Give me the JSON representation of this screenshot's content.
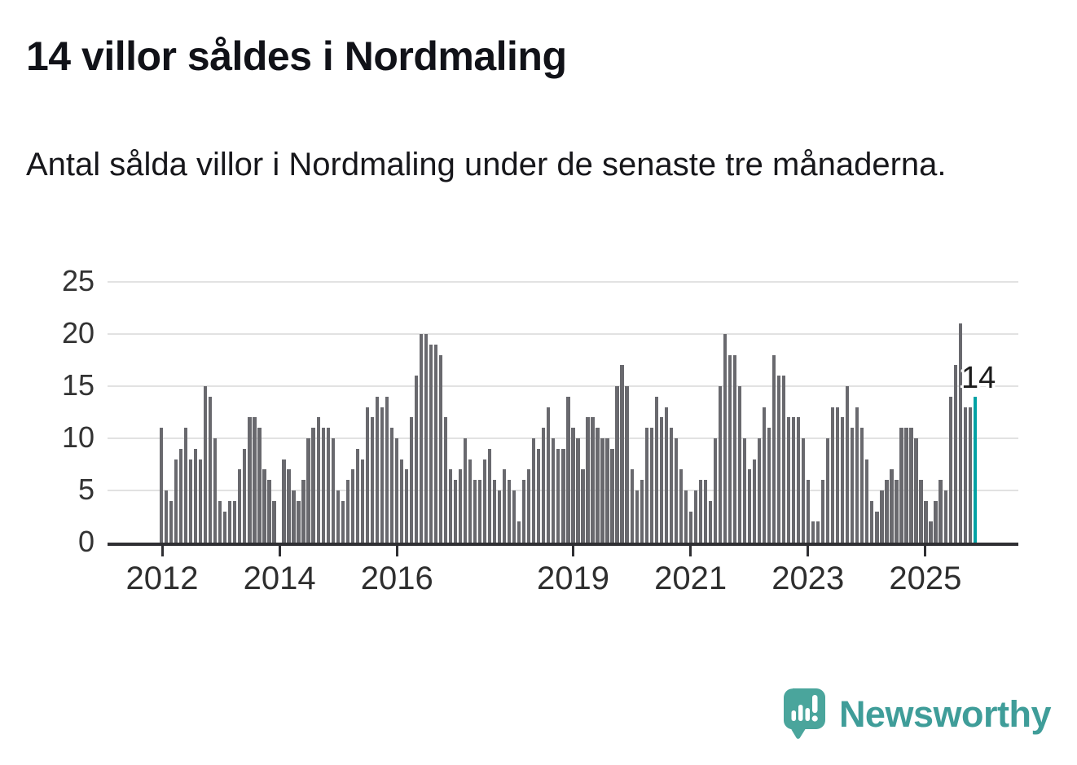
{
  "header": {
    "title": "14 villor såldes i Nordmaling",
    "subtitle": "Antal sålda villor i Nordmaling under de senaste tre månaderna."
  },
  "chart_data": {
    "type": "bar",
    "title": "14 villor såldes i Nordmaling",
    "ylabel": "",
    "xlabel": "",
    "ylim": [
      0,
      25
    ],
    "y_ticks": [
      0,
      5,
      10,
      15,
      20,
      25
    ],
    "grid": "horizontal",
    "x_ticks": [
      {
        "label": "2012",
        "index": 0
      },
      {
        "label": "2014",
        "index": 24
      },
      {
        "label": "2016",
        "index": 48
      },
      {
        "label": "2019",
        "index": 84
      },
      {
        "label": "2021",
        "index": 108
      },
      {
        "label": "2023",
        "index": 132
      },
      {
        "label": "2025",
        "index": 156
      }
    ],
    "values": [
      11,
      5,
      4,
      8,
      9,
      11,
      8,
      9,
      8,
      15,
      14,
      10,
      4,
      3,
      4,
      4,
      7,
      9,
      12,
      12,
      11,
      7,
      6,
      4,
      0,
      8,
      7,
      5,
      4,
      6,
      10,
      11,
      12,
      11,
      11,
      10,
      5,
      4,
      6,
      7,
      9,
      8,
      13,
      12,
      14,
      13,
      14,
      11,
      10,
      8,
      7,
      12,
      16,
      20,
      20,
      19,
      19,
      18,
      12,
      7,
      6,
      7,
      10,
      8,
      6,
      6,
      8,
      9,
      6,
      5,
      7,
      6,
      5,
      2,
      6,
      7,
      10,
      9,
      11,
      13,
      10,
      9,
      9,
      14,
      11,
      10,
      7,
      12,
      12,
      11,
      10,
      10,
      9,
      15,
      17,
      15,
      7,
      5,
      6,
      11,
      11,
      14,
      12,
      13,
      11,
      10,
      7,
      5,
      3,
      5,
      6,
      6,
      4,
      10,
      15,
      20,
      18,
      18,
      15,
      10,
      7,
      8,
      10,
      13,
      11,
      18,
      16,
      16,
      12,
      12,
      12,
      10,
      6,
      2,
      2,
      6,
      10,
      13,
      13,
      12,
      15,
      11,
      13,
      11,
      8,
      4,
      3,
      5,
      6,
      7,
      6,
      11,
      11,
      11,
      10,
      6,
      4,
      2,
      4,
      6,
      5,
      14,
      17,
      21,
      13,
      13,
      14
    ],
    "highlight_last": true,
    "annotation": {
      "text": "14"
    }
  },
  "colors": {
    "bar": "#69696e",
    "highlight": "#00a2a4",
    "axis": "#2f2f33",
    "gridline": "#e2e2e2",
    "brand_teal": "#3f9d99",
    "icon_teal": "#4aa59c"
  },
  "footer": {
    "brand": "Newsworthy"
  }
}
